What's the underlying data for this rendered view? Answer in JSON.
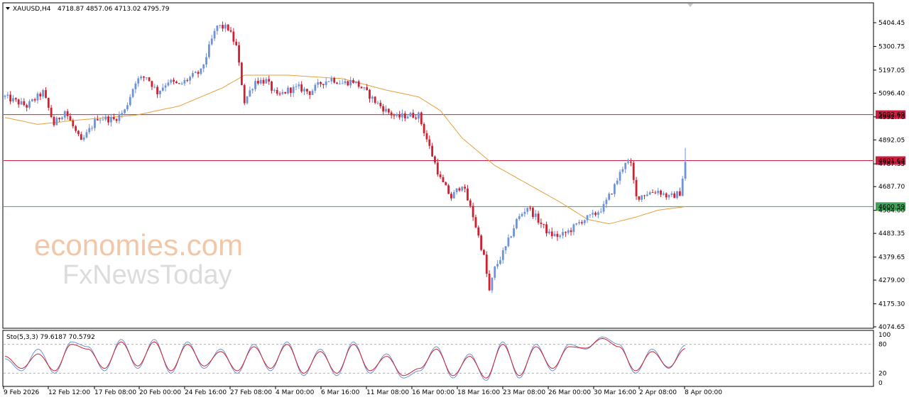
{
  "header": {
    "symbol": "XAUUSD,H4",
    "ohlc": "4718.87 4857.06 4713.02 4795.79"
  },
  "oscillator": {
    "label": "Sto(5,3,3) 79.6187 70.5792",
    "scale_ticks": [
      "100",
      "80",
      "20",
      "0"
    ]
  },
  "watermark": {
    "line1": "economies.com",
    "line2": "FxNewsToday"
  },
  "colors": {
    "bull": "#6f93d6",
    "bear": "#d01f2f",
    "ma": "#e5a03c",
    "resistance": "#cc1f40",
    "support": "#3fa35a",
    "stoch_main": "#6f93d6",
    "stoch_signal": "#d01f2f"
  },
  "chart_data": {
    "type": "candlestick",
    "y_ticks": [
      "5404.45",
      "5300.75",
      "5197.05",
      "5096.40",
      "4992.70",
      "4892.05",
      "4787.35",
      "4687.70",
      "4584.00",
      "4483.35",
      "4379.65",
      "4279.00",
      "4175.30",
      "4074.65"
    ],
    "ylim": [
      4074.65,
      5404.45
    ],
    "x_ticks": [
      "9 Feb 2026",
      "12 Feb 12:00",
      "17 Feb 08:00",
      "20 Feb 00:00",
      "24 Feb 16:00",
      "27 Feb 08:00",
      "4 Mar 00:00",
      "6 Mar 16:00",
      "11 Mar 08:00",
      "16 Mar 00:00",
      "18 Mar 16:00",
      "23 Mar 08:00",
      "26 Mar 00:00",
      "30 Mar 16:00",
      "2 Apr 08:00",
      "8 Apr 00:00"
    ],
    "levels": [
      {
        "label": "5002.69",
        "value": 5002.69,
        "kind": "resistance"
      },
      {
        "label": "4801.64",
        "value": 4801.64,
        "kind": "resistance"
      },
      {
        "label": "4600.59",
        "value": 4600.59,
        "kind": "support"
      }
    ],
    "price_path": [
      [
        0,
        5080
      ],
      [
        8,
        5040
      ],
      [
        14,
        5100
      ],
      [
        18,
        4960
      ],
      [
        22,
        5020
      ],
      [
        28,
        4880
      ],
      [
        34,
        4990
      ],
      [
        40,
        4980
      ],
      [
        44,
        5020
      ],
      [
        48,
        5150
      ],
      [
        52,
        5170
      ],
      [
        56,
        5100
      ],
      [
        60,
        5150
      ],
      [
        64,
        5130
      ],
      [
        68,
        5165
      ],
      [
        72,
        5190
      ],
      [
        76,
        5330
      ],
      [
        78,
        5390
      ],
      [
        82,
        5380
      ],
      [
        85,
        5300
      ],
      [
        88,
        5060
      ],
      [
        92,
        5150
      ],
      [
        96,
        5150
      ],
      [
        100,
        5080
      ],
      [
        104,
        5110
      ],
      [
        108,
        5120
      ],
      [
        112,
        5100
      ],
      [
        116,
        5140
      ],
      [
        120,
        5160
      ],
      [
        124,
        5140
      ],
      [
        128,
        5150
      ],
      [
        132,
        5110
      ],
      [
        136,
        5060
      ],
      [
        140,
        5020
      ],
      [
        144,
        4990
      ],
      [
        148,
        5000
      ],
      [
        152,
        5000
      ],
      [
        156,
        4860
      ],
      [
        160,
        4720
      ],
      [
        164,
        4640
      ],
      [
        168,
        4700
      ],
      [
        172,
        4560
      ],
      [
        176,
        4380
      ],
      [
        178,
        4230
      ],
      [
        180,
        4330
      ],
      [
        184,
        4420
      ],
      [
        188,
        4540
      ],
      [
        192,
        4600
      ],
      [
        196,
        4540
      ],
      [
        200,
        4480
      ],
      [
        204,
        4470
      ],
      [
        208,
        4500
      ],
      [
        212,
        4540
      ],
      [
        216,
        4560
      ],
      [
        220,
        4600
      ],
      [
        224,
        4690
      ],
      [
        228,
        4800
      ],
      [
        230,
        4780
      ],
      [
        232,
        4640
      ],
      [
        236,
        4660
      ],
      [
        240,
        4670
      ],
      [
        244,
        4640
      ],
      [
        248,
        4660
      ],
      [
        250,
        4796
      ]
    ],
    "moving_average": [
      [
        0,
        4990
      ],
      [
        12,
        4960
      ],
      [
        28,
        4980
      ],
      [
        48,
        5000
      ],
      [
        64,
        5040
      ],
      [
        80,
        5120
      ],
      [
        88,
        5175
      ],
      [
        104,
        5175
      ],
      [
        124,
        5160
      ],
      [
        140,
        5110
      ],
      [
        152,
        5080
      ],
      [
        160,
        5020
      ],
      [
        168,
        4900
      ],
      [
        180,
        4780
      ],
      [
        192,
        4700
      ],
      [
        204,
        4620
      ],
      [
        214,
        4545
      ],
      [
        222,
        4525
      ],
      [
        232,
        4555
      ],
      [
        240,
        4585
      ],
      [
        250,
        4600
      ]
    ],
    "stochastic": {
      "main": [
        50,
        25,
        70,
        20,
        85,
        75,
        25,
        90,
        30,
        90,
        20,
        85,
        30,
        70,
        20,
        80,
        25,
        85,
        15,
        70,
        15,
        85,
        20,
        60,
        10,
        25,
        75,
        10,
        60,
        5,
        85,
        10,
        80,
        25,
        80,
        70,
        95,
        80,
        20,
        70,
        30,
        78
      ],
      "signal": [
        55,
        30,
        60,
        25,
        80,
        70,
        30,
        85,
        35,
        85,
        25,
        80,
        35,
        65,
        25,
        75,
        30,
        80,
        20,
        65,
        20,
        80,
        25,
        55,
        15,
        30,
        70,
        15,
        55,
        10,
        80,
        15,
        75,
        30,
        75,
        72,
        92,
        75,
        25,
        65,
        32,
        71
      ]
    }
  }
}
